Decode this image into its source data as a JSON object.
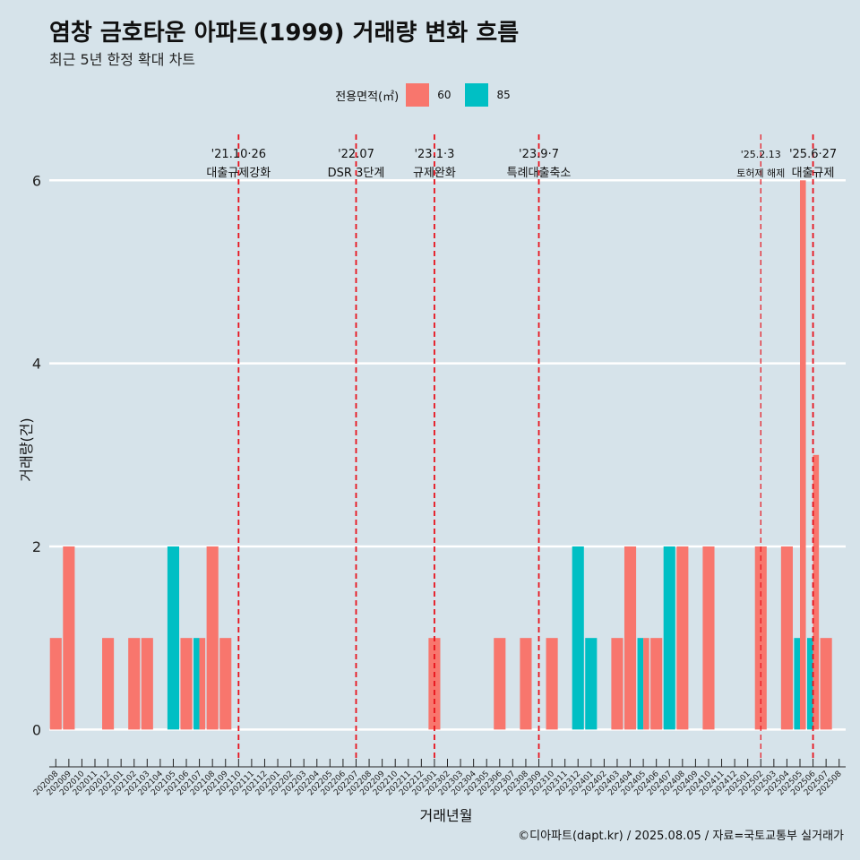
{
  "chart_data": {
    "type": "bar",
    "title": "염창 금호타운 아파트(1999) 거래량 변화 흐름",
    "subtitle": "최근 5년 한정 확대 차트",
    "xlabel": "거래년월",
    "ylabel": "거래량(건)",
    "caption": "©디아파트(dapt.kr) / 2025.08.05 / 자료=국토교통부 실거래가",
    "legend": {
      "title": "전용면적(㎡)",
      "position": "top",
      "items": [
        {
          "label": "60",
          "color": "#F8766D"
        },
        {
          "label": "85",
          "color": "#00BFC4"
        }
      ]
    },
    "ylim": [
      -0.3,
      6.6
    ],
    "yticks": [
      0,
      2,
      4,
      6
    ],
    "grid": true,
    "categories": [
      "202008",
      "202009",
      "202010",
      "202011",
      "202012",
      "202101",
      "202102",
      "202103",
      "202104",
      "202105",
      "202106",
      "202107",
      "202108",
      "202109",
      "202110",
      "202111",
      "202112",
      "202201",
      "202202",
      "202203",
      "202204",
      "202205",
      "202206",
      "202207",
      "202208",
      "202209",
      "202210",
      "202211",
      "202212",
      "202301",
      "202302",
      "202303",
      "202304",
      "202305",
      "202306",
      "202307",
      "202308",
      "202309",
      "202310",
      "202311",
      "202312",
      "202401",
      "202402",
      "202403",
      "202404",
      "202405",
      "202406",
      "202407",
      "202408",
      "202409",
      "202410",
      "202411",
      "202412",
      "202501",
      "202502",
      "202503",
      "202504",
      "202505",
      "202506",
      "202507",
      "202508"
    ],
    "series": [
      {
        "name": "60",
        "color": "#F8766D",
        "values": [
          1,
          2,
          0,
          0,
          1,
          0,
          1,
          1,
          0,
          0,
          1,
          1,
          2,
          1,
          0,
          0,
          0,
          0,
          0,
          0,
          0,
          0,
          0,
          0,
          0,
          0,
          0,
          0,
          0,
          1,
          0,
          0,
          0,
          0,
          1,
          0,
          1,
          0,
          1,
          0,
          0,
          0,
          0,
          1,
          2,
          1,
          1,
          0,
          2,
          0,
          2,
          0,
          0,
          0,
          2,
          0,
          2,
          6,
          3,
          1,
          0
        ]
      },
      {
        "name": "85",
        "color": "#00BFC4",
        "values": [
          0,
          0,
          0,
          0,
          0,
          0,
          0,
          0,
          0,
          2,
          0,
          1,
          0,
          0,
          0,
          0,
          0,
          0,
          0,
          0,
          0,
          0,
          0,
          0,
          0,
          0,
          0,
          0,
          0,
          0,
          0,
          0,
          0,
          0,
          0,
          0,
          0,
          0,
          0,
          0,
          2,
          1,
          0,
          0,
          0,
          1,
          0,
          2,
          0,
          0,
          0,
          0,
          0,
          0,
          0,
          0,
          0,
          1,
          1,
          0,
          0
        ]
      }
    ],
    "annotations": [
      {
        "date": "202110",
        "label1": "'21.10·26",
        "label2": "대출규제강화"
      },
      {
        "date": "202207",
        "label1": "'22.07",
        "label2": "DSR 3단계"
      },
      {
        "date": "202301",
        "label1": "'23.1·3",
        "label2": "규제완화"
      },
      {
        "date": "202309",
        "label1": "'23.9·7",
        "label2": "특례대출축소"
      },
      {
        "date": "202502",
        "label1": "'25.2.13",
        "label2": "토허제 해제",
        "small": true
      },
      {
        "date": "202506",
        "label1": "'25.6·27",
        "label2": "대출규제"
      }
    ]
  }
}
